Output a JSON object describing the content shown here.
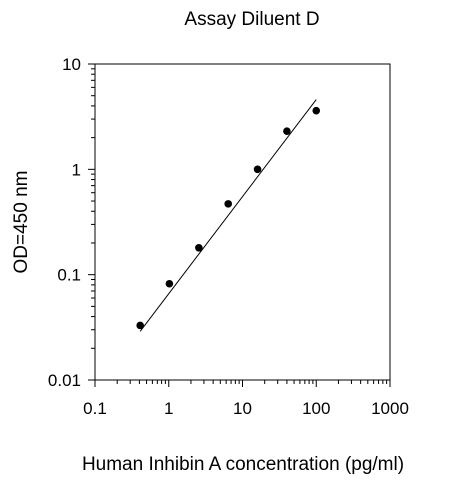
{
  "chart_data": {
    "type": "scatter",
    "title": "Assay Diluent D",
    "xlabel": "Human Inhibin A concentration (pg/ml)",
    "ylabel": "OD=450 nm",
    "x_scale": "log",
    "y_scale": "log",
    "xlim": [
      0.1,
      1000
    ],
    "ylim": [
      0.01,
      10
    ],
    "x_ticks": [
      {
        "value": 0.1,
        "label": "0.1"
      },
      {
        "value": 1,
        "label": "1"
      },
      {
        "value": 10,
        "label": "10"
      },
      {
        "value": 100,
        "label": "100"
      },
      {
        "value": 1000,
        "label": "1000"
      }
    ],
    "y_ticks": [
      {
        "value": 0.01,
        "label": "0.01"
      },
      {
        "value": 0.1,
        "label": "0.1"
      },
      {
        "value": 1,
        "label": "1"
      },
      {
        "value": 10,
        "label": "10"
      }
    ],
    "grid": false,
    "series": [
      {
        "points": [
          {
            "x": 0.41,
            "y": 0.033
          },
          {
            "x": 1.02,
            "y": 0.082
          },
          {
            "x": 2.56,
            "y": 0.18
          },
          {
            "x": 6.4,
            "y": 0.47
          },
          {
            "x": 16.0,
            "y": 1.0
          },
          {
            "x": 40.0,
            "y": 2.3
          },
          {
            "x": 100.0,
            "y": 3.6
          }
        ]
      }
    ],
    "fit_line": {
      "type": "linear-log-log",
      "start": {
        "x": 0.41,
        "y": 0.029
      },
      "end": {
        "x": 100.0,
        "y": 4.6
      }
    },
    "colors": {
      "axis": "#000000",
      "points": "#000000",
      "fit_line": "#000000"
    }
  }
}
